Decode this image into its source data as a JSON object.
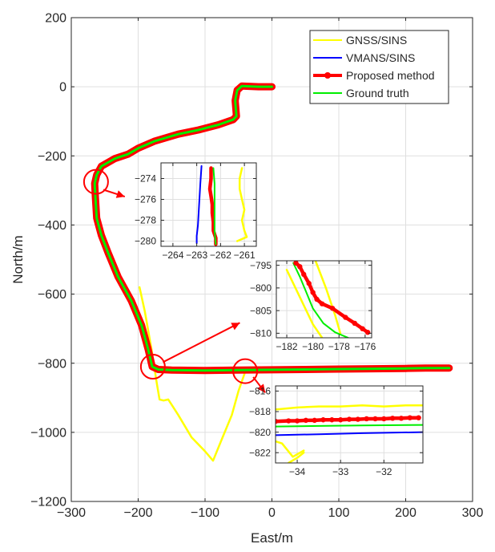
{
  "chart_data": [
    {
      "type": "line",
      "xlabel": "East/m",
      "ylabel": "North/m",
      "xlim": [
        -300,
        300
      ],
      "ylim": [
        -1200,
        200
      ],
      "xticks": [
        -300,
        -200,
        -100,
        0,
        100,
        200,
        300
      ],
      "yticks": [
        200,
        0,
        -200,
        -400,
        -600,
        -800,
        -1000,
        -1200
      ],
      "grid": true,
      "legend_position": "top-right",
      "series": [
        {
          "name": "GNSS/SINS",
          "color": "#ffff00",
          "x": [
            -198,
            -190,
            -180,
            -172,
            -168,
            -162,
            -155,
            -140,
            -120,
            -100,
            -88,
            -75,
            -60,
            -50,
            -40
          ],
          "y": [
            -580,
            -650,
            -760,
            -860,
            -905,
            -908,
            -905,
            -950,
            -1015,
            -1055,
            -1082,
            -1020,
            -950,
            -880,
            -825
          ]
        },
        {
          "name": "VMANS/SINS",
          "color": "#0000ff",
          "x": [
            -182,
            -170,
            -150,
            -100,
            -50,
            0,
            50,
            100,
            150,
            200,
            230,
            262
          ],
          "y": [
            -812,
            -819,
            -820,
            -820,
            -819,
            -818,
            -817,
            -815,
            -813,
            -811,
            -809,
            -808
          ]
        },
        {
          "name": "Proposed method",
          "color": "#ff0000",
          "marker": "circle",
          "x": [
            0,
            -5,
            -20,
            -45,
            -52,
            -55,
            -53,
            -58,
            -80,
            -110,
            -140,
            -175,
            -200,
            -215,
            -235,
            -255,
            -262,
            -265,
            -264,
            -262,
            -255,
            -245,
            -230,
            -210,
            -195,
            -185,
            -179,
            -170,
            -150,
            -100,
            -50,
            0,
            50,
            100,
            150,
            200,
            230,
            265
          ],
          "y": [
            0,
            0,
            0,
            2,
            -10,
            -40,
            -85,
            -95,
            -110,
            -125,
            -137,
            -157,
            -178,
            -195,
            -208,
            -230,
            -255,
            -280,
            -320,
            -380,
            -430,
            -480,
            -550,
            -620,
            -690,
            -760,
            -810,
            -818,
            -820,
            -821,
            -820,
            -819,
            -818,
            -817,
            -816,
            -815,
            -814,
            -814
          ]
        },
        {
          "name": "Ground truth",
          "color": "#00ee00",
          "x": [
            0,
            -5,
            -20,
            -45,
            -52,
            -55,
            -53,
            -58,
            -80,
            -110,
            -140,
            -175,
            -200,
            -215,
            -235,
            -255,
            -262,
            -265,
            -264,
            -262,
            -255,
            -245,
            -230,
            -210,
            -195,
            -185,
            -179,
            -170,
            -150,
            -100,
            -50,
            0,
            50,
            100,
            150,
            200,
            230,
            265
          ],
          "y": [
            0,
            0,
            0,
            2,
            -10,
            -40,
            -85,
            -95,
            -110,
            -125,
            -137,
            -157,
            -178,
            -195,
            -208,
            -230,
            -255,
            -280,
            -320,
            -380,
            -430,
            -480,
            -550,
            -620,
            -690,
            -760,
            -810,
            -818,
            -820,
            -821,
            -820,
            -819,
            -818,
            -817,
            -816,
            -815,
            -814,
            -814
          ]
        }
      ]
    },
    {
      "type": "line",
      "xlim": [
        -264.5,
        -260.5
      ],
      "ylim": [
        -280.5,
        -272.5
      ],
      "xticks": [
        -264,
        -263,
        -262,
        -261
      ],
      "yticks": [
        -274,
        -276,
        -278,
        -280
      ],
      "grid": true,
      "series": [
        {
          "name": "GNSS/SINS",
          "color": "#ffff00",
          "x": [
            -261.1,
            -261.2,
            -261.2,
            -261.1,
            -261.0,
            -261.1,
            -261.0,
            -260.9,
            -261.3
          ],
          "y": [
            -273.0,
            -274.0,
            -275.0,
            -276.0,
            -277.0,
            -278.0,
            -279.0,
            -279.6,
            -280.0
          ]
        },
        {
          "name": "VMANS/SINS",
          "color": "#0000ff",
          "x": [
            -262.8,
            -262.85,
            -262.9,
            -262.95,
            -263.0,
            -263.0
          ],
          "y": [
            -272.8,
            -274.5,
            -276.5,
            -278.5,
            -279.5,
            -280.2
          ]
        },
        {
          "name": "Proposed method",
          "color": "#ff0000",
          "x": [
            -262.4,
            -262.4,
            -262.45,
            -262.4,
            -262.35,
            -262.35,
            -262.3,
            -262.3,
            -262.2,
            -262.2
          ],
          "y": [
            -273.0,
            -274.0,
            -275.0,
            -275.7,
            -276.5,
            -277.3,
            -278.2,
            -279.0,
            -279.7,
            -280.3
          ]
        },
        {
          "name": "Ground truth",
          "color": "#00ee00",
          "x": [
            -262.3,
            -262.25,
            -262.25,
            -262.25,
            -262.25,
            -262.2
          ],
          "y": [
            -273.0,
            -274.5,
            -276.0,
            -277.5,
            -279.0,
            -280.3
          ]
        }
      ]
    },
    {
      "type": "line",
      "xlim": [
        -182.8,
        -175.5
      ],
      "ylim": [
        -811,
        -794
      ],
      "xticks": [
        -182,
        -180,
        -178,
        -176
      ],
      "yticks": [
        -795,
        -800,
        -805,
        -810
      ],
      "grid": true,
      "series": [
        {
          "name": "GNSS/SINS",
          "color": "#ffff00",
          "x": [
            -182.0,
            -181.0,
            -180.0,
            -179.3
          ],
          "y": [
            -796,
            -802,
            -808,
            -811
          ]
        },
        {
          "name": "GNSS/SINS",
          "color": "#ffff00",
          "x": [
            -179.8,
            -179.0,
            -178.3,
            -177.9
          ],
          "y": [
            -794,
            -800,
            -806,
            -810
          ]
        },
        {
          "name": "Ground truth",
          "color": "#00ee00",
          "x": [
            -181.5,
            -181.0,
            -180.5,
            -180.0,
            -179.2,
            -178.3,
            -177.3
          ],
          "y": [
            -794.5,
            -797.5,
            -801.0,
            -804.5,
            -807.8,
            -809.8,
            -811.0
          ]
        },
        {
          "name": "Proposed method",
          "color": "#ff0000",
          "marker": "circle",
          "x": [
            -181.3,
            -181.0,
            -180.7,
            -180.3,
            -180.0,
            -179.7,
            -179.3,
            -178.5,
            -177.5,
            -176.8,
            -176.2,
            -175.8
          ],
          "y": [
            -794.5,
            -795.3,
            -797.0,
            -799.0,
            -801.0,
            -802.5,
            -803.5,
            -804.5,
            -806.5,
            -807.8,
            -809.0,
            -809.8
          ]
        }
      ]
    },
    {
      "type": "line",
      "xlim": [
        -34.5,
        -31.1
      ],
      "ylim": [
        -823,
        -815.5
      ],
      "xticks": [
        -34,
        -33,
        -32
      ],
      "yticks": [
        -816,
        -818,
        -820,
        -822
      ],
      "grid": true,
      "series": [
        {
          "name": "GNSS/SINS",
          "color": "#ffff00",
          "x": [
            -34.5,
            -34.0,
            -33.5,
            -33.0,
            -32.5,
            -32.0,
            -31.5,
            -31.1
          ],
          "y": [
            -817.8,
            -817.6,
            -817.5,
            -817.5,
            -817.4,
            -817.5,
            -817.4,
            -817.4
          ]
        },
        {
          "name": "GNSS/SINS",
          "color": "#ffff00",
          "x": [
            -34.5,
            -34.35,
            -34.1,
            -33.85
          ],
          "y": [
            -820.9,
            -821.1,
            -822.4,
            -821.8
          ]
        },
        {
          "name": "GNSS/SINS",
          "color": "#ffff00",
          "x": [
            -34.2,
            -34.0,
            -33.85
          ],
          "y": [
            -823.0,
            -822.5,
            -822.0
          ]
        },
        {
          "name": "Proposed method",
          "color": "#ff0000",
          "marker": "circle",
          "x": [
            -34.5,
            -34.2,
            -34.0,
            -33.8,
            -33.6,
            -33.4,
            -33.2,
            -33.0,
            -32.8,
            -32.6,
            -32.4,
            -32.2,
            -32.0,
            -31.8,
            -31.6,
            -31.4,
            -31.2
          ],
          "y": [
            -818.95,
            -818.9,
            -818.9,
            -818.85,
            -818.85,
            -818.8,
            -818.8,
            -818.8,
            -818.75,
            -818.75,
            -818.7,
            -818.7,
            -818.7,
            -818.65,
            -818.65,
            -818.6,
            -818.6
          ]
        },
        {
          "name": "Ground truth",
          "color": "#00ee00",
          "x": [
            -34.5,
            -33.5,
            -32.5,
            -31.1
          ],
          "y": [
            -819.45,
            -819.4,
            -819.35,
            -819.3
          ]
        },
        {
          "name": "VMANS/SINS",
          "color": "#0000ff",
          "x": [
            -34.5,
            -33.5,
            -32.5,
            -31.1
          ],
          "y": [
            -820.3,
            -820.2,
            -820.1,
            -820.0
          ]
        }
      ]
    }
  ]
}
